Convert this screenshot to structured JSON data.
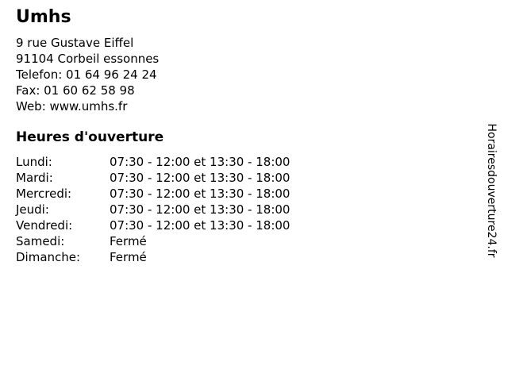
{
  "page": {
    "background_color": "#ffffff",
    "text_color": "#000000"
  },
  "business": {
    "name": "Umhs",
    "contact_lines": [
      "9 rue Gustave Eiffel",
      "91104 Corbeil essonnes",
      "Telefon: 01 64 96 24 24",
      "Fax: 01 60 62 58 98",
      "Web: www.umhs.fr"
    ]
  },
  "hours": {
    "title": "Heures d'ouverture",
    "rows": [
      {
        "day": "Lundi:",
        "times": "07:30 - 12:00 et 13:30 - 18:00"
      },
      {
        "day": "Mardi:",
        "times": "07:30 - 12:00 et 13:30 - 18:00"
      },
      {
        "day": "Mercredi:",
        "times": "07:30 - 12:00 et 13:30 - 18:00"
      },
      {
        "day": "Jeudi:",
        "times": "07:30 - 12:00 et 13:30 - 18:00"
      },
      {
        "day": "Vendredi:",
        "times": "07:30 - 12:00 et 13:30 - 18:00"
      },
      {
        "day": "Samedi:",
        "times": "Fermé"
      },
      {
        "day": "Dimanche:",
        "times": "Fermé"
      }
    ]
  },
  "watermark": {
    "label": "Horairesdouverture24.fr"
  }
}
